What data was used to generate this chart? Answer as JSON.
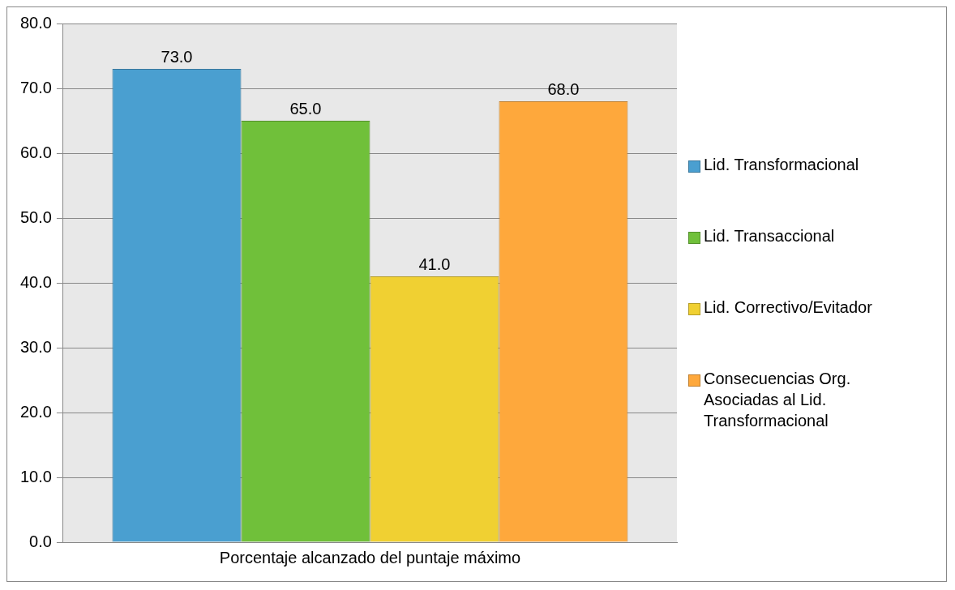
{
  "chart_data": {
    "type": "bar",
    "categories": [
      "Porcentaje alcanzado del puntaje máximo"
    ],
    "series": [
      {
        "name": "Lid. Transformacional",
        "color": "#4a9fd0",
        "values": [
          73.0
        ],
        "value_labels": [
          "73.0"
        ]
      },
      {
        "name": "Lid. Transaccional",
        "color": "#70c03a",
        "values": [
          65.0
        ],
        "value_labels": [
          "65.0"
        ]
      },
      {
        "name": "Lid. Correctivo/Evitador",
        "color": "#f0d032",
        "values": [
          41.0
        ],
        "value_labels": [
          "41.0"
        ]
      },
      {
        "name": "Consecuencias Org. Asociadas al Lid. Transformacional",
        "color": "#fea83c",
        "values": [
          68.0
        ],
        "value_labels": [
          "68.0"
        ]
      }
    ],
    "ylim": [
      0,
      80
    ],
    "yticks": [
      {
        "value": 0,
        "label": "0.0"
      },
      {
        "value": 10,
        "label": "10.0"
      },
      {
        "value": 20,
        "label": "20.0"
      },
      {
        "value": 30,
        "label": "30.0"
      },
      {
        "value": 40,
        "label": "40.0"
      },
      {
        "value": 50,
        "label": "50.0"
      },
      {
        "value": 60,
        "label": "60.0"
      },
      {
        "value": 70,
        "label": "70.0"
      },
      {
        "value": 80,
        "label": "80.0"
      }
    ],
    "grid": "y",
    "legend": "right"
  }
}
